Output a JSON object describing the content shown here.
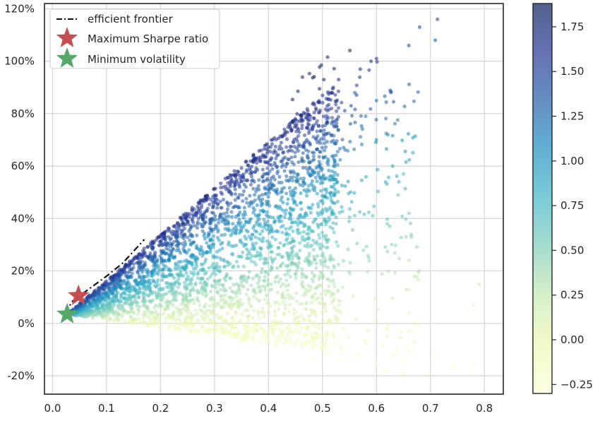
{
  "chart_data": {
    "type": "scatter",
    "title": "",
    "xlabel": "",
    "ylabel": "",
    "xlim": [
      -0.015,
      0.835
    ],
    "ylim": [
      -0.27,
      1.22
    ],
    "x_ticks": [
      0.0,
      0.1,
      0.2,
      0.3,
      0.4,
      0.5,
      0.6,
      0.7,
      0.8
    ],
    "x_tick_labels": [
      "0.0",
      "0.1",
      "0.2",
      "0.3",
      "0.4",
      "0.5",
      "0.6",
      "0.7",
      "0.8"
    ],
    "y_ticks": [
      -0.2,
      0.0,
      0.2,
      0.4,
      0.6,
      0.8,
      1.0,
      1.2
    ],
    "y_tick_labels": [
      "-20%",
      "0%",
      "20%",
      "40%",
      "60%",
      "80%",
      "100%",
      "120%"
    ],
    "grid": true,
    "legend": {
      "position": "top-left",
      "entries": [
        {
          "label": "efficient frontier",
          "marker": "dash-dot line",
          "color": "#111111"
        },
        {
          "label": "Maximum Sharpe ratio",
          "marker": "star",
          "color": "#c44e52"
        },
        {
          "label": "Minimum volatility",
          "marker": "star",
          "color": "#55a868"
        }
      ]
    },
    "colorbar": {
      "colormap": "YlGnBu",
      "range": [
        -0.3,
        1.88
      ],
      "ticks": [
        -0.25,
        0.0,
        0.25,
        0.5,
        0.75,
        1.0,
        1.25,
        1.5,
        1.75
      ],
      "tick_labels": [
        "−0.25",
        "0.00",
        "0.25",
        "0.50",
        "0.75",
        "1.00",
        "1.25",
        "1.50",
        "1.75"
      ]
    },
    "series": [
      {
        "name": "efficient frontier",
        "kind": "line",
        "style": "dash-dot",
        "x": [
          0.027,
          0.03,
          0.035,
          0.045,
          0.06,
          0.08,
          0.1,
          0.13,
          0.17
        ],
        "y": [
          0.035,
          0.06,
          0.08,
          0.1,
          0.12,
          0.15,
          0.18,
          0.23,
          0.32
        ]
      },
      {
        "name": "Maximum Sharpe ratio",
        "kind": "point",
        "x": [
          0.048
        ],
        "y": [
          0.105
        ]
      },
      {
        "name": "Minimum volatility",
        "kind": "point",
        "x": [
          0.027
        ],
        "y": [
          0.035
        ]
      },
      {
        "name": "simulated portfolios",
        "kind": "scatter-cloud",
        "description": "Monte Carlo portfolios colored by Sharpe ratio",
        "boundary": {
          "apex": [
            0.027,
            0.035
          ],
          "upper_edge_end": [
            0.48,
            0.83
          ],
          "lower_edge_end": [
            0.55,
            -0.13
          ]
        },
        "sample_points": [
          {
            "x": 0.713,
            "y": 1.16,
            "c": 1.45
          },
          {
            "x": 0.709,
            "y": 1.08,
            "c": 1.35
          },
          {
            "x": 0.68,
            "y": 1.13,
            "c": 1.4
          },
          {
            "x": 0.66,
            "y": 1.06,
            "c": 1.35
          },
          {
            "x": 0.6,
            "y": 1.01,
            "c": 1.55
          },
          {
            "x": 0.59,
            "y": 1.0,
            "c": 1.55
          },
          {
            "x": 0.57,
            "y": 0.97,
            "c": 1.6
          },
          {
            "x": 0.53,
            "y": 0.93,
            "c": 1.62
          },
          {
            "x": 0.52,
            "y": 0.9,
            "c": 1.62
          },
          {
            "x": 0.6,
            "y": 0.85,
            "c": 1.2
          },
          {
            "x": 0.56,
            "y": 0.88,
            "c": 1.3
          },
          {
            "x": 0.58,
            "y": 0.79,
            "c": 1.1
          },
          {
            "x": 0.6,
            "y": 0.7,
            "c": 1.0
          },
          {
            "x": 0.63,
            "y": 0.6,
            "c": 0.9
          },
          {
            "x": 0.65,
            "y": 0.57,
            "c": 0.7
          },
          {
            "x": 0.64,
            "y": 0.49,
            "c": 0.55
          },
          {
            "x": 0.66,
            "y": 0.42,
            "c": 0.5
          },
          {
            "x": 0.655,
            "y": 0.33,
            "c": 0.4
          },
          {
            "x": 0.62,
            "y": 0.38,
            "c": 0.55
          },
          {
            "x": 0.66,
            "y": 0.24,
            "c": 0.25
          },
          {
            "x": 0.67,
            "y": 0.18,
            "c": 0.2
          },
          {
            "x": 0.66,
            "y": 0.13,
            "c": 0.1
          },
          {
            "x": 0.79,
            "y": 0.15,
            "c": 0.1
          },
          {
            "x": 0.78,
            "y": 0.07,
            "c": 0.05
          },
          {
            "x": 0.71,
            "y": -0.12,
            "c": -0.25
          },
          {
            "x": 0.74,
            "y": -0.17,
            "c": -0.25
          },
          {
            "x": 0.78,
            "y": -0.16,
            "c": -0.25
          },
          {
            "x": 0.69,
            "y": -0.19,
            "c": -0.25
          },
          {
            "x": 0.65,
            "y": -0.19,
            "c": -0.25
          },
          {
            "x": 0.63,
            "y": -0.12,
            "c": -0.2
          },
          {
            "x": 0.6,
            "y": -0.15,
            "c": -0.2
          },
          {
            "x": 0.62,
            "y": -0.02,
            "c": -0.1
          }
        ]
      }
    ]
  }
}
